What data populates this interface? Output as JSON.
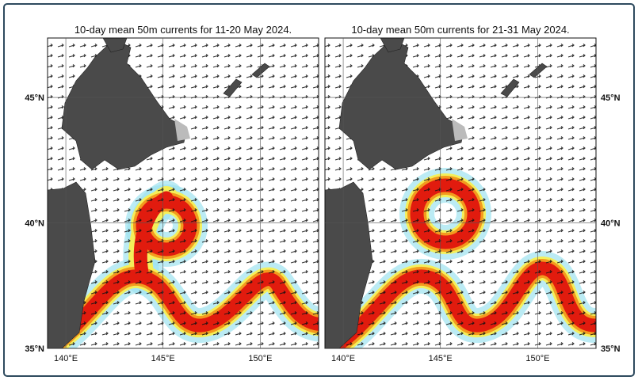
{
  "panels": [
    {
      "title": "10-day mean 50m currents for 11-20 May 2024.",
      "xlim": [
        139.06,
        153.0
      ],
      "ylim": [
        35,
        47.37
      ],
      "xticks": [
        {
          "value": 140,
          "label": "140°E"
        },
        {
          "value": 145,
          "label": "145°E"
        },
        {
          "value": 150,
          "label": "150°E"
        }
      ],
      "yticks": [
        {
          "value": 35,
          "label": "35°N"
        },
        {
          "value": 40,
          "label": "40°N"
        },
        {
          "value": 45,
          "label": "45°N"
        }
      ]
    },
    {
      "title": "10-day mean 50m currents for 21-31 May 2024.",
      "xlim": [
        139.06,
        153.0
      ],
      "ylim": [
        35,
        47.37
      ],
      "xticks": [
        {
          "value": 140,
          "label": "140°E"
        },
        {
          "value": 145,
          "label": "145°E"
        },
        {
          "value": 150,
          "label": "150°E"
        }
      ],
      "yticks": [
        {
          "value": 35,
          "label": "35°N"
        },
        {
          "value": 40,
          "label": "40°N"
        },
        {
          "value": 45,
          "label": "45°N"
        }
      ]
    }
  ]
}
